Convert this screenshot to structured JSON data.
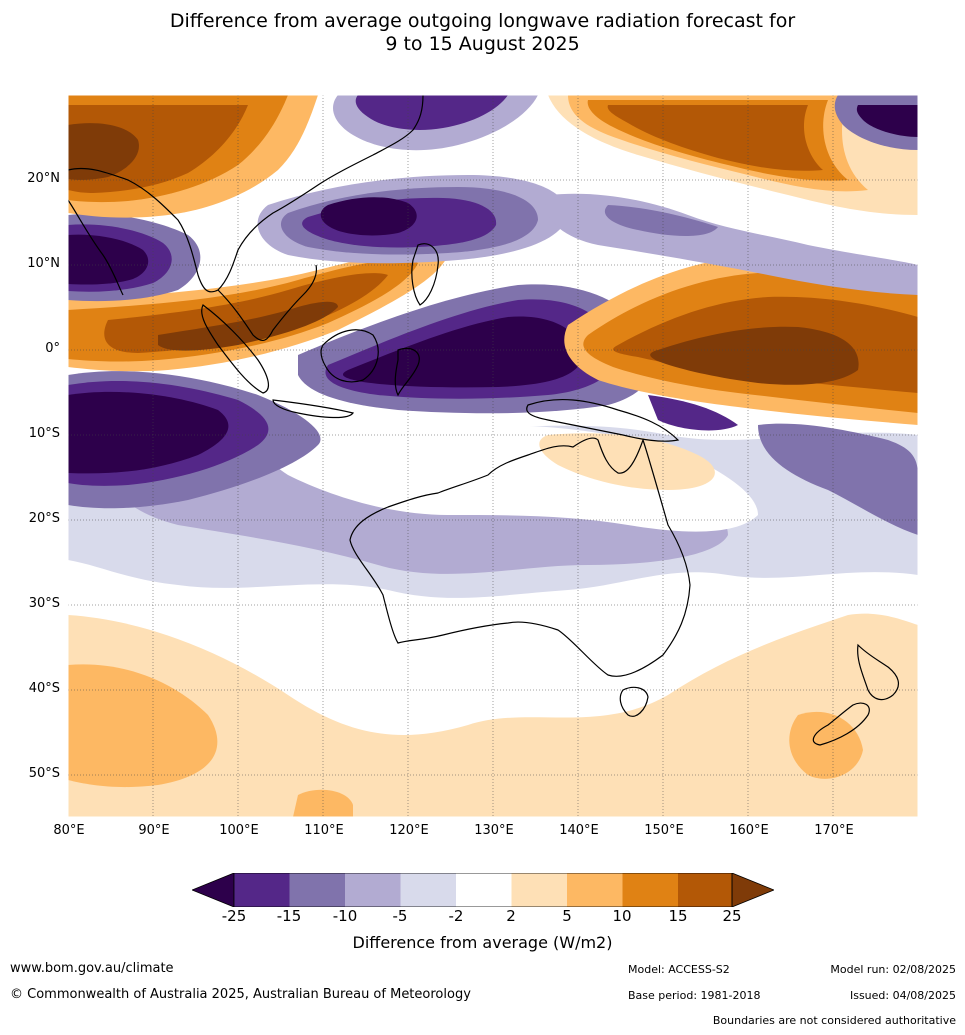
{
  "title": {
    "line1": "Difference from average outgoing longwave radiation forecast for",
    "line2": "9 to 15 August 2025"
  },
  "map": {
    "lat_labels": [
      "20°N",
      "10°N",
      "0°",
      "10°S",
      "20°S",
      "30°S",
      "40°S",
      "50°S"
    ],
    "lon_labels": [
      "80°E",
      "90°E",
      "100°E",
      "110°E",
      "120°E",
      "130°E",
      "140°E",
      "150°E",
      "160°E",
      "170°E"
    ],
    "extent": {
      "lon_min": 80,
      "lon_max": 180,
      "lat_min": -55,
      "lat_max": 30
    }
  },
  "colorbar": {
    "ticks": [
      "-25",
      "-15",
      "-10",
      "-5",
      "-2",
      "2",
      "5",
      "10",
      "15",
      "25"
    ],
    "colors": [
      "#2d004b",
      "#542788",
      "#8073ac",
      "#b2abd2",
      "#d8daeb",
      "#ffffff",
      "#fee0b6",
      "#fdb863",
      "#e08214",
      "#b35806",
      "#7f3b08"
    ],
    "label": "Difference from average (W/m2)"
  },
  "footer": {
    "website": "www.bom.gov.au/climate",
    "copyright": "© Commonwealth of Australia 2025, Australian Bureau of Meteorology",
    "model": "Model: ACCESS-S2",
    "model_run": "Model run: 02/08/2025",
    "base_period": "Base period: 1981-2018",
    "issued": "Issued: 04/08/2025",
    "disclaimer": "Boundaries are not considered authoritative"
  }
}
